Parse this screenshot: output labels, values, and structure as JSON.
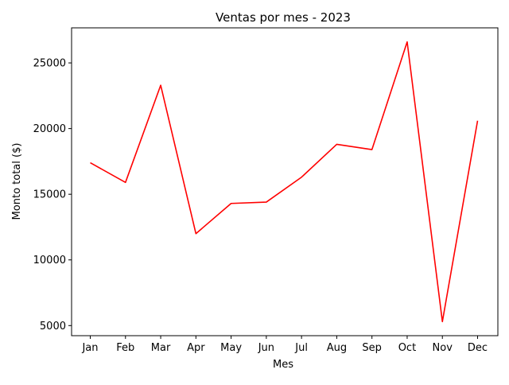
{
  "chart_data": {
    "type": "line",
    "title": "Ventas por mes - 2023",
    "xlabel": "Mes",
    "ylabel": "Monto total ($)",
    "categories": [
      "Jan",
      "Feb",
      "Mar",
      "Apr",
      "May",
      "Jun",
      "Jul",
      "Aug",
      "Sep",
      "Oct",
      "Nov",
      "Dec"
    ],
    "series": [
      {
        "values": [
          17400,
          15900,
          23300,
          12000,
          14300,
          14400,
          16300,
          18800,
          18400,
          26600,
          5300,
          20600
        ],
        "color": "#ff0000"
      }
    ],
    "yticks": [
      5000,
      10000,
      15000,
      20000,
      25000
    ],
    "ytick_labels": [
      "5000",
      "10000",
      "15000",
      "20000",
      "25000"
    ],
    "ylim": [
      4230,
      27670
    ],
    "grid": false,
    "legend": "none"
  }
}
